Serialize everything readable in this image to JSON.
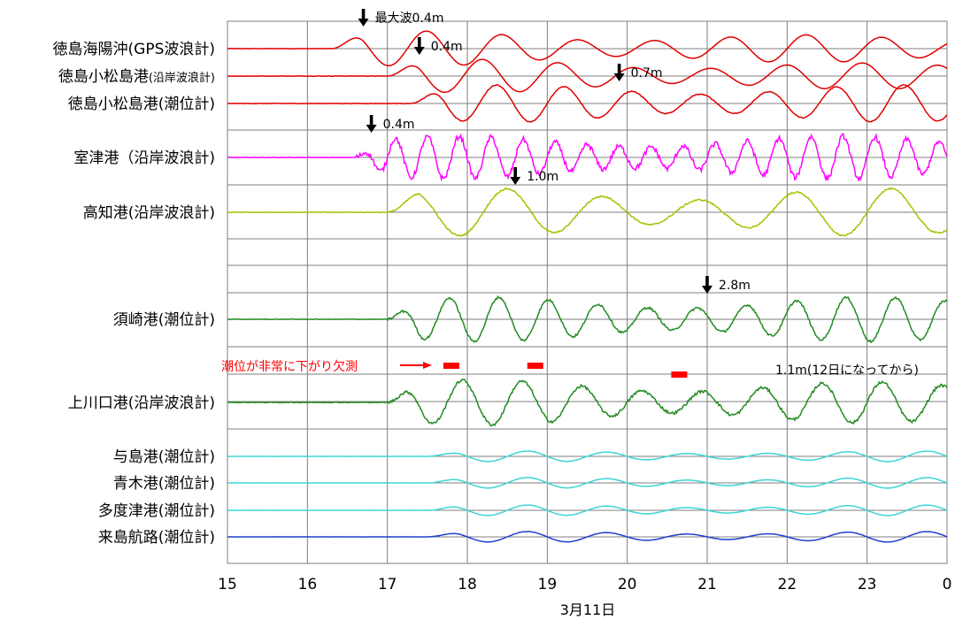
{
  "chart_data": {
    "type": "line",
    "xlabel": "3月11日",
    "xlim": [
      15,
      24
    ],
    "x_ticks": [
      "15",
      "16",
      "17",
      "18",
      "19",
      "20",
      "21",
      "22",
      "23",
      "0"
    ],
    "grid": true,
    "series": [
      {
        "name": "徳島海陽沖(GPS波浪計)",
        "color": "#e00000",
        "peak_label": "最大波0.4m",
        "peak_x": 16.7,
        "start": 16.3,
        "amp": 0.4,
        "period": 0.95,
        "decay": 0.05,
        "noise": 0.0,
        "step": 1.0
      },
      {
        "name": "徳島小松島港",
        "name_suffix": "(沿岸波浪計)",
        "color": "#e00000",
        "peak_label": "0.4m",
        "peak_x": 17.4,
        "start": 17.0,
        "amp": 0.35,
        "period": 0.95,
        "decay": 0.05,
        "noise": 0.0,
        "step": 1.0
      },
      {
        "name": "徳島小松島港(潮位計)",
        "color": "#e00000",
        "peak_label": "0.7m",
        "peak_x": 19.9,
        "start": 17.3,
        "amp": 0.7,
        "period": 0.85,
        "decay": 0.0,
        "noise": 0.02,
        "step": 1.0
      },
      {
        "name": "室津港（沿岸波浪計)",
        "color": "#ff00ff",
        "peak_label": "0.4m",
        "peak_x": 16.8,
        "start": 16.6,
        "amp": 0.28,
        "period": 0.4,
        "decay": 0.0,
        "noise": 0.12,
        "step": 1.0
      },
      {
        "name": "高知港(沿岸波浪計)",
        "color": "#a8c000",
        "peak_label": "1.0m",
        "peak_x": 18.6,
        "start": 17.0,
        "amp": 1.0,
        "period": 1.2,
        "decay": 0.0,
        "noise": 0.03,
        "step": 1.0
      },
      {
        "name": "須崎港(潮位計)",
        "color": "#228b22",
        "peak_label": "2.8m",
        "peak_x": 21.0,
        "start": 17.0,
        "amp": 2.8,
        "period": 0.62,
        "decay": 0.0,
        "noise": 0.05,
        "step": 1.0,
        "extra_label": "1.1m(12日になってから)"
      },
      {
        "name": "上川口港(沿岸波浪計)",
        "color": "#228b22",
        "peak_label": "",
        "peak_x": 0,
        "start": 17.0,
        "amp": 0.9,
        "period": 0.75,
        "decay": 0.02,
        "noise": 0.06,
        "step": 1.0
      },
      {
        "name": "与島港(潮位計)",
        "color": "#3dd5d5",
        "peak_label": "",
        "peak_x": 0,
        "start": 17.5,
        "amp": 0.05,
        "period": 1.0,
        "decay": 0.0,
        "noise": 0.02,
        "step": 1.0
      },
      {
        "name": "青木港(潮位計)",
        "color": "#3dd5d5",
        "peak_label": "",
        "peak_x": 0,
        "start": 17.5,
        "amp": 0.04,
        "period": 1.0,
        "decay": 0.0,
        "noise": 0.02,
        "step": 1.0
      },
      {
        "name": "多度津港(潮位計)",
        "color": "#3dd5d5",
        "peak_label": "",
        "peak_x": 0,
        "start": 17.5,
        "amp": 0.05,
        "period": 1.0,
        "decay": 0.0,
        "noise": 0.02,
        "step": 1.0
      },
      {
        "name": "来島航路(潮位計)",
        "color": "#1f3fcf",
        "peak_label": "",
        "peak_x": 0,
        "start": 17.5,
        "amp": 0.05,
        "period": 1.0,
        "decay": 0.0,
        "noise": 0.02,
        "step": 1.0
      }
    ],
    "missing_note": "潮位が非常に下がり欠測",
    "missing_x": [
      17.8,
      18.85,
      20.65
    ]
  }
}
